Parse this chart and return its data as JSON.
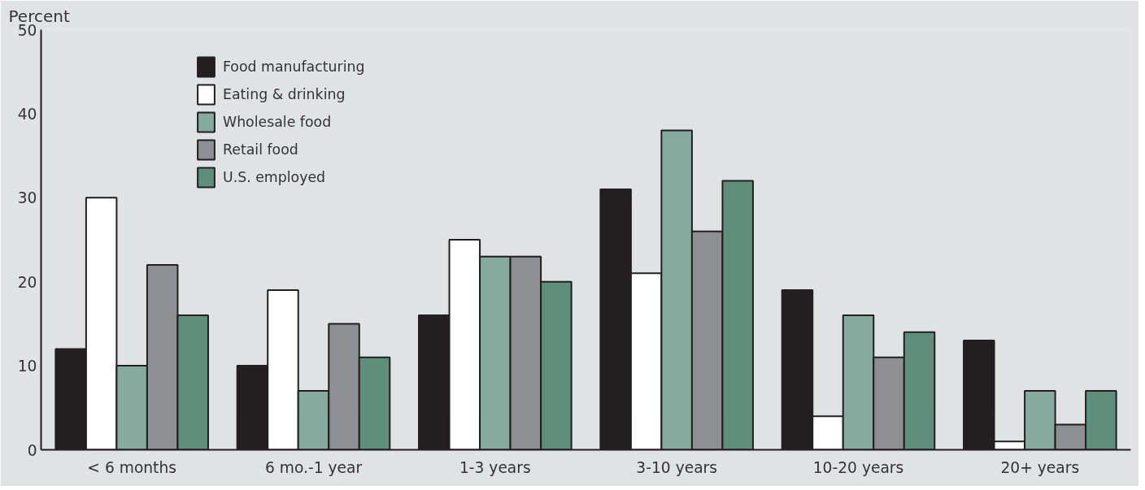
{
  "chart_data": {
    "type": "bar",
    "ylabel": "Percent",
    "categories": [
      "< 6 months",
      "6 mo.-1 year",
      "1-3 years",
      "3-10 years",
      "10-20 years",
      "20+ years"
    ],
    "series": [
      {
        "name": "Food manufacturing",
        "color": "#231f20",
        "values": [
          12,
          10,
          16,
          31,
          19,
          13
        ]
      },
      {
        "name": "Eating & drinking",
        "color": "#ffffff",
        "values": [
          30,
          19,
          25,
          21,
          4,
          1
        ]
      },
      {
        "name": "Wholesale food",
        "color": "#86aa9e",
        "values": [
          10,
          7,
          23,
          38,
          16,
          7
        ]
      },
      {
        "name": "Retail food",
        "color": "#8e8f93",
        "values": [
          22,
          15,
          23,
          26,
          11,
          3
        ]
      },
      {
        "name": "U.S. employed",
        "color": "#5f8e7c",
        "values": [
          16,
          11,
          20,
          32,
          14,
          7
        ]
      }
    ],
    "ylim": [
      0,
      50
    ],
    "yticks": [
      0,
      10,
      20,
      30,
      40,
      50
    ],
    "grid": false,
    "legend": "top left"
  }
}
